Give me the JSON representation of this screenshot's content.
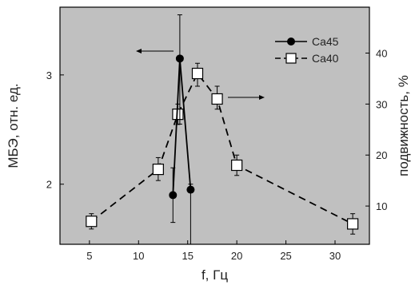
{
  "chart_data": {
    "type": "line",
    "title": "",
    "xlabel": "f, Гц",
    "ylabel_left": "МБЭ, отн. ед.",
    "ylabel_right": "подвижность, %",
    "xlim": [
      2,
      33.5
    ],
    "ylim_left": [
      1.45,
      3.62
    ],
    "ylim_right": [
      2.5,
      49
    ],
    "x_ticks": [
      5,
      10,
      15,
      20,
      25,
      30
    ],
    "y_left_ticks": [
      2,
      3
    ],
    "y_right_ticks": [
      10,
      20,
      30,
      40
    ],
    "grid": false,
    "legend_position": "top-right",
    "plot_background": "#c0c0c0",
    "series": [
      {
        "name": "Ca45",
        "axis": "left",
        "marker": "filled-circle",
        "line_style": "solid",
        "color": "#000000",
        "points": [
          {
            "x": 13.5,
            "y": 1.9,
            "err_low": 1.65,
            "err_high": 2.15
          },
          {
            "x": 14.2,
            "y": 3.15,
            "err_low": 2.55,
            "err_high": 3.55
          },
          {
            "x": 15.3,
            "y": 1.95,
            "err_low": 1.45,
            "err_high": 2.0
          }
        ]
      },
      {
        "name": "Ca40",
        "axis": "right",
        "marker": "open-square",
        "line_style": "dashed",
        "color": "#000000",
        "points": [
          {
            "x": 5.2,
            "y": 7.0,
            "err_low": 5.5,
            "err_high": 8.5
          },
          {
            "x": 12.0,
            "y": 17.2,
            "err_low": 15.0,
            "err_high": 19.5
          },
          {
            "x": 14.0,
            "y": 28.0,
            "err_low": 26.0,
            "err_high": 30.0
          },
          {
            "x": 16.0,
            "y": 36.0,
            "err_low": 33.5,
            "err_high": 38.0
          },
          {
            "x": 18.0,
            "y": 31.0,
            "err_low": 29.0,
            "err_high": 33.5
          },
          {
            "x": 20.0,
            "y": 18.0,
            "err_low": 16.0,
            "err_high": 20.0
          },
          {
            "x": 31.8,
            "y": 6.5,
            "err_low": 4.5,
            "err_high": 8.5
          }
        ]
      }
    ],
    "annotations": [
      {
        "type": "arrow",
        "direction": "left",
        "refers_to": "Ca45"
      },
      {
        "type": "arrow",
        "direction": "right",
        "refers_to": "Ca40"
      }
    ]
  }
}
